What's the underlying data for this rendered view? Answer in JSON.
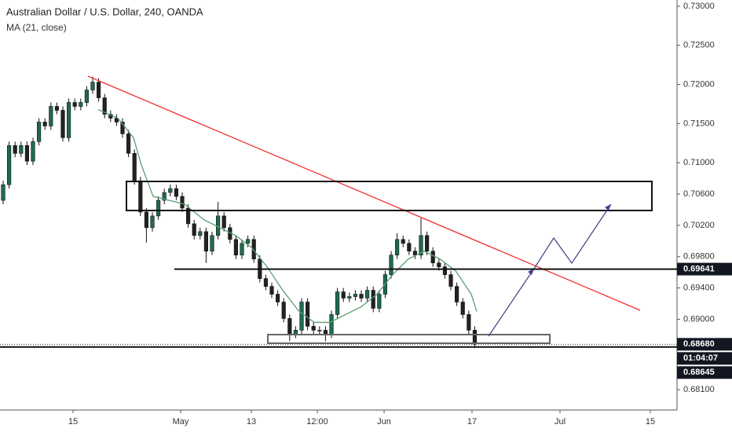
{
  "chart_data": {
    "type": "candlestick",
    "title": "Australian Dollar / U.S. Dollar, 240, OANDA",
    "indicator": {
      "name": "MA (21, close)",
      "color": "#5a9e6f",
      "x": [
        15.92,
        19.21,
        21.84,
        23.16,
        25.13,
        27.76,
        30.39,
        33.68,
        36.32,
        38.95,
        41.58,
        44.21,
        46.84,
        49.47,
        52.11,
        54.74,
        57.37,
        60.0,
        62.63,
        65.26,
        67.89,
        70.53,
        73.16,
        75.79,
        78.42,
        79.34
      ],
      "values": [
        0.7168,
        0.7157,
        0.7132,
        0.7097,
        0.7057,
        0.7052,
        0.7047,
        0.7027,
        0.7017,
        0.7007,
        0.6992,
        0.6967,
        0.6937,
        0.6911,
        0.6896,
        0.6896,
        0.6906,
        0.6916,
        0.6932,
        0.6957,
        0.6977,
        0.6987,
        0.6977,
        0.6962,
        0.6932,
        0.691
      ]
    },
    "up_color": "#1e6b52",
    "down_color": "#222222",
    "open": [
      0.7052,
      0.7072,
      0.7122,
      0.7112,
      0.7122,
      0.7102,
      0.7127,
      0.7152,
      0.7147,
      0.7172,
      0.7167,
      0.7132,
      0.7177,
      0.7172,
      0.7177,
      0.7193,
      0.7203,
      0.7183,
      0.7162,
      0.7157,
      0.7152,
      0.7137,
      0.7112,
      0.7077,
      0.7037,
      0.7017,
      0.7032,
      0.7052,
      0.7062,
      0.7067,
      0.7057,
      0.7042,
      0.7022,
      0.7007,
      0.7012,
      0.6987,
      0.7007,
      0.7032,
      0.7017,
      0.7002,
      0.6982,
      0.6997,
      0.7002,
      0.6977,
      0.6952,
      0.6942,
      0.6932,
      0.6922,
      0.6901,
      0.6881,
      0.6886,
      0.6922,
      0.6891,
      0.6886,
      0.6886,
      0.6881,
      0.6906,
      0.6935,
      0.6927,
      0.6929,
      0.6932,
      0.6927,
      0.6937,
      0.6914,
      0.6932,
      0.6957,
      0.6982,
      0.7002,
      0.6997,
      0.6987,
      0.6982,
      0.7007,
      0.6987,
      0.6972,
      0.6967,
      0.6957,
      0.6942,
      0.6922,
      0.6906,
      0.6886
    ],
    "high": [
      0.7077,
      0.7127,
      0.7127,
      0.7127,
      0.7127,
      0.7132,
      0.7157,
      0.7157,
      0.7177,
      0.7177,
      0.7172,
      0.7182,
      0.7182,
      0.7182,
      0.7198,
      0.721,
      0.7208,
      0.7188,
      0.7167,
      0.7162,
      0.7157,
      0.7142,
      0.7117,
      0.7082,
      0.7042,
      0.7037,
      0.7057,
      0.7067,
      0.7072,
      0.7072,
      0.7062,
      0.7047,
      0.7027,
      0.7017,
      0.7017,
      0.7012,
      0.705,
      0.7037,
      0.7022,
      0.7007,
      0.7002,
      0.7007,
      0.7007,
      0.6982,
      0.6957,
      0.6947,
      0.6937,
      0.6927,
      0.6906,
      0.6891,
      0.6927,
      0.6927,
      0.6896,
      0.6891,
      0.6891,
      0.6911,
      0.694,
      0.694,
      0.6934,
      0.6937,
      0.6937,
      0.6942,
      0.6942,
      0.6937,
      0.6962,
      0.6987,
      0.701,
      0.7007,
      0.7002,
      0.6992,
      0.7029,
      0.7012,
      0.6992,
      0.6977,
      0.6972,
      0.6962,
      0.6947,
      0.6927,
      0.6911,
      0.6891
    ],
    "low": [
      0.7047,
      0.7067,
      0.7107,
      0.7107,
      0.7097,
      0.7097,
      0.7122,
      0.7142,
      0.7142,
      0.7162,
      0.7127,
      0.7127,
      0.7167,
      0.7167,
      0.7172,
      0.7188,
      0.7178,
      0.7157,
      0.7152,
      0.7147,
      0.7132,
      0.7107,
      0.7072,
      0.7032,
      0.6998,
      0.7012,
      0.7027,
      0.7047,
      0.7057,
      0.7052,
      0.7037,
      0.7017,
      0.7002,
      0.7002,
      0.6972,
      0.6982,
      0.7002,
      0.7012,
      0.6997,
      0.6977,
      0.6977,
      0.6992,
      0.6972,
      0.6947,
      0.6937,
      0.6927,
      0.6917,
      0.6896,
      0.6872,
      0.6876,
      0.6881,
      0.6886,
      0.6881,
      0.6881,
      0.6872,
      0.6876,
      0.6901,
      0.6922,
      0.6922,
      0.6924,
      0.6922,
      0.6922,
      0.6909,
      0.6909,
      0.6927,
      0.6952,
      0.6977,
      0.6992,
      0.6982,
      0.6977,
      0.6977,
      0.6982,
      0.6967,
      0.6962,
      0.6952,
      0.6937,
      0.6917,
      0.6901,
      0.6881,
      0.6863
    ],
    "close": [
      0.7072,
      0.7122,
      0.7112,
      0.7122,
      0.7102,
      0.7127,
      0.7152,
      0.7147,
      0.7172,
      0.7167,
      0.7132,
      0.7177,
      0.7172,
      0.7177,
      0.7193,
      0.7203,
      0.7183,
      0.7162,
      0.7157,
      0.7152,
      0.7137,
      0.7112,
      0.7077,
      0.7037,
      0.7017,
      0.7032,
      0.7052,
      0.7062,
      0.7067,
      0.7057,
      0.7042,
      0.7022,
      0.7007,
      0.7012,
      0.6987,
      0.7007,
      0.7032,
      0.7017,
      0.7002,
      0.6982,
      0.6997,
      0.7002,
      0.6977,
      0.6952,
      0.6942,
      0.6932,
      0.6922,
      0.6901,
      0.6881,
      0.6886,
      0.6922,
      0.6891,
      0.6886,
      0.6886,
      0.6881,
      0.6906,
      0.6935,
      0.6927,
      0.6929,
      0.6932,
      0.6927,
      0.6937,
      0.6914,
      0.6932,
      0.6957,
      0.6982,
      0.7002,
      0.6997,
      0.6987,
      0.6982,
      0.7007,
      0.6987,
      0.6972,
      0.6967,
      0.6957,
      0.6942,
      0.6922,
      0.6906,
      0.6886,
      0.6868
    ],
    "xlim": [
      -0.526,
      112.89
    ],
    "xticks": [
      {
        "value": 11.71,
        "label": "15"
      },
      {
        "value": 29.74,
        "label": "May"
      },
      {
        "value": 41.58,
        "label": "13"
      },
      {
        "value": 52.63,
        "label": "12:00"
      },
      {
        "value": 63.82,
        "label": "Jun"
      },
      {
        "value": 78.55,
        "label": "17"
      },
      {
        "value": 93.29,
        "label": "Jul"
      },
      {
        "value": 108.42,
        "label": "15"
      }
    ],
    "ylim": [
      0.6784,
      0.7308
    ],
    "yticks": [
      {
        "value": 0.73,
        "label": "0.73000"
      },
      {
        "value": 0.725,
        "label": "0.72500"
      },
      {
        "value": 0.72,
        "label": "0.72000"
      },
      {
        "value": 0.715,
        "label": "0.71500"
      },
      {
        "value": 0.71,
        "label": "0.71000"
      },
      {
        "value": 0.706,
        "label": "0.70600"
      },
      {
        "value": 0.702,
        "label": "0.70200"
      },
      {
        "value": 0.698,
        "label": "0.69800"
      },
      {
        "value": 0.694,
        "label": "0.69400"
      },
      {
        "value": 0.69,
        "label": "0.69000"
      },
      {
        "value": 0.681,
        "label": "0.68100"
      }
    ],
    "levels": [
      0.69641,
      0.68645
    ],
    "last_price": {
      "value": 0.6868,
      "label": "0.68680"
    },
    "countdown": "01:04:07"
  }
}
